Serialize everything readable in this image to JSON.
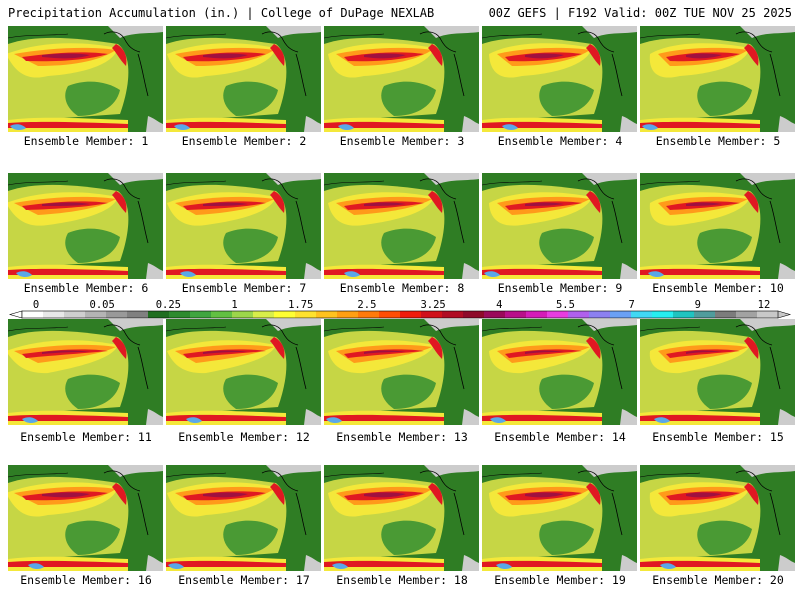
{
  "header": {
    "title": "Precipitation Accumulation (in.) | College of DuPage NEXLAB",
    "run_info": "00Z GEFS | F192 Valid: 00Z TUE NOV 25 2025"
  },
  "panels": [
    {
      "member": 1,
      "label": "Ensemble Member: 1"
    },
    {
      "member": 2,
      "label": "Ensemble Member: 2"
    },
    {
      "member": 3,
      "label": "Ensemble Member: 3"
    },
    {
      "member": 4,
      "label": "Ensemble Member: 4"
    },
    {
      "member": 5,
      "label": "Ensemble Member: 5"
    },
    {
      "member": 6,
      "label": "Ensemble Member: 6"
    },
    {
      "member": 7,
      "label": "Ensemble Member: 7"
    },
    {
      "member": 8,
      "label": "Ensemble Member: 8"
    },
    {
      "member": 9,
      "label": "Ensemble Member: 9"
    },
    {
      "member": 10,
      "label": "Ensemble Member: 10"
    },
    {
      "member": 11,
      "label": "Ensemble Member: 11"
    },
    {
      "member": 12,
      "label": "Ensemble Member: 12"
    },
    {
      "member": 13,
      "label": "Ensemble Member: 13"
    },
    {
      "member": 14,
      "label": "Ensemble Member: 14"
    },
    {
      "member": 15,
      "label": "Ensemble Member: 15"
    },
    {
      "member": 16,
      "label": "Ensemble Member: 16"
    },
    {
      "member": 17,
      "label": "Ensemble Member: 17"
    },
    {
      "member": 18,
      "label": "Ensemble Member: 18"
    },
    {
      "member": 19,
      "label": "Ensemble Member: 19"
    },
    {
      "member": 20,
      "label": "Ensemble Member: 20"
    }
  ],
  "colorbar": {
    "tick_labels": [
      "0",
      "0.05",
      "0.25",
      "1",
      "1.75",
      "2.5",
      "3.25",
      "4",
      "5.5",
      "7",
      "9",
      "12"
    ],
    "colors": [
      "#ffffff",
      "#e8e8e8",
      "#cfcfcf",
      "#b4b4b4",
      "#999999",
      "#808080",
      "#1f6e1f",
      "#2e8b2e",
      "#3fa53f",
      "#62c042",
      "#9cd64a",
      "#d8ee4a",
      "#ffff33",
      "#ffe22e",
      "#ffc21e",
      "#ff9f12",
      "#ff7a0a",
      "#ff4d06",
      "#f01c0c",
      "#d0101a",
      "#b00c24",
      "#8e0a2a",
      "#9a0a5a",
      "#b8108a",
      "#d41cb8",
      "#e83ce0",
      "#b060ec",
      "#8c80f0",
      "#6aa0f4",
      "#40d8f4",
      "#26eef0",
      "#20c4c0",
      "#509c9c",
      "#7c7c7c",
      "#a2a2a2",
      "#c8c8c8"
    ],
    "map_colors": {
      "ocean_light": "#c6d645",
      "ocean_mid": "#f4e83a",
      "ocean_heavy": "#ff9a1a",
      "band": "#e01822",
      "core": "#a01040",
      "extreme": "#b066dc",
      "land": "#2f7d24",
      "land_dry": "#4a9a34",
      "snow": "#cccccc",
      "tropics": "#5aa8e8"
    }
  }
}
